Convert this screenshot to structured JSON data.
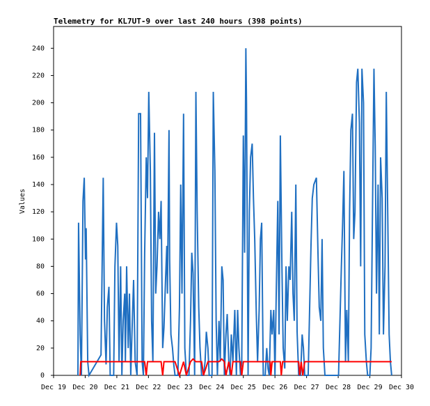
{
  "chart_data": {
    "type": "line",
    "title": "Telemetry for KL7UT-9 over last 240 hours (398 points)",
    "y_label": "Values",
    "xlim": [
      19,
      30
    ],
    "xticks": [
      {
        "value": 19,
        "label": "Dec 19"
      },
      {
        "value": 20,
        "label": "Dec 20"
      },
      {
        "value": 21,
        "label": "Dec 21"
      },
      {
        "value": 22,
        "label": "Dec 22"
      },
      {
        "value": 23,
        "label": "Dec 23"
      },
      {
        "value": 24,
        "label": "Dec 24"
      },
      {
        "value": 25,
        "label": "Dec 25"
      },
      {
        "value": 26,
        "label": "Dec 26"
      },
      {
        "value": 27,
        "label": "Dec 27"
      },
      {
        "value": 28,
        "label": "Dec 28"
      },
      {
        "value": 29,
        "label": "Dec 29"
      },
      {
        "value": 30,
        "label": "Dec 30"
      }
    ],
    "ylim": [
      0,
      256
    ],
    "yticks": [
      0,
      20,
      40,
      60,
      80,
      100,
      120,
      140,
      160,
      180,
      200,
      220,
      240
    ],
    "series": [
      {
        "color": "#1f6fc1",
        "x": [
          19.77,
          19.79,
          19.84,
          19.88,
          19.93,
          19.97,
          20.01,
          20.03,
          20.08,
          20.12,
          20.5,
          20.55,
          20.57,
          20.61,
          20.66,
          20.7,
          20.75,
          20.79,
          20.9,
          20.94,
          20.99,
          21.03,
          21.07,
          21.12,
          21.16,
          21.2,
          21.25,
          21.27,
          21.31,
          21.36,
          21.4,
          21.44,
          21.49,
          21.53,
          21.58,
          21.64,
          21.69,
          21.75,
          21.8,
          21.84,
          21.88,
          21.93,
          21.97,
          22.01,
          22.06,
          22.1,
          22.14,
          22.19,
          22.23,
          22.27,
          22.32,
          22.36,
          22.4,
          22.45,
          22.49,
          22.54,
          22.58,
          22.6,
          22.65,
          22.67,
          22.71,
          22.76,
          22.8,
          22.84,
          22.93,
          22.98,
          23.02,
          23.06,
          23.11,
          23.15,
          23.2,
          23.28,
          23.33,
          23.37,
          23.41,
          23.46,
          23.5,
          23.54,
          23.59,
          23.63,
          23.68,
          23.74,
          23.79,
          23.83,
          23.88,
          23.92,
          24.01,
          24.05,
          24.1,
          24.14,
          24.18,
          24.23,
          24.27,
          24.32,
          24.36,
          24.4,
          24.45,
          24.49,
          24.54,
          24.58,
          24.62,
          24.67,
          24.73,
          24.78,
          24.82,
          24.86,
          24.91,
          24.95,
          25.0,
          25.04,
          25.08,
          25.1,
          25.15,
          25.19,
          25.23,
          25.28,
          25.32,
          25.36,
          25.41,
          25.45,
          25.5,
          25.54,
          25.58,
          25.63,
          25.69,
          25.74,
          25.78,
          25.82,
          25.87,
          25.91,
          25.96,
          26.0,
          26.04,
          26.09,
          26.13,
          26.17,
          26.22,
          26.26,
          26.31,
          26.35,
          26.39,
          26.44,
          26.48,
          26.53,
          26.57,
          26.61,
          26.66,
          26.7,
          26.75,
          26.81,
          26.86,
          26.9,
          26.94,
          27.05,
          27.14,
          27.18,
          27.23,
          27.31,
          27.36,
          27.4,
          27.45,
          27.49,
          27.53,
          27.58,
          28.01,
          28.1,
          28.14,
          28.18,
          28.23,
          28.27,
          28.32,
          28.36,
          28.4,
          28.45,
          28.49,
          28.53,
          28.58,
          28.62,
          28.67,
          28.71,
          28.75,
          28.8,
          28.84,
          28.89,
          28.93,
          29.0,
          29.04,
          29.08,
          29.13,
          29.17,
          29.21,
          29.26,
          29.3,
          29.34,
          29.39,
          29.43,
          29.48,
          29.52,
          29.56,
          29.61,
          29.65,
          29.69
        ],
        "values": [
          0,
          112,
          30,
          0,
          128,
          145,
          85,
          108,
          10,
          0,
          15,
          108,
          145,
          40,
          8,
          50,
          65,
          0,
          0,
          80,
          112,
          95,
          10,
          80,
          0,
          40,
          60,
          10,
          80,
          20,
          60,
          0,
          40,
          70,
          10,
          0,
          192,
          192,
          10,
          0,
          90,
          160,
          130,
          208,
          150,
          40,
          10,
          178,
          60,
          80,
          120,
          100,
          128,
          20,
          35,
          70,
          95,
          60,
          180,
          85,
          30,
          20,
          8,
          0,
          0,
          50,
          140,
          60,
          192,
          20,
          0,
          0,
          40,
          90,
          75,
          0,
          208,
          120,
          50,
          20,
          0,
          0,
          10,
          32,
          20,
          0,
          0,
          208,
          150,
          40,
          0,
          40,
          10,
          80,
          70,
          0,
          30,
          45,
          10,
          0,
          30,
          10,
          48,
          0,
          48,
          20,
          0,
          10,
          176,
          90,
          240,
          200,
          0,
          120,
          160,
          170,
          130,
          100,
          45,
          10,
          48,
          100,
          112,
          0,
          0,
          20,
          5,
          0,
          48,
          30,
          48,
          0,
          60,
          128,
          30,
          176,
          80,
          20,
          5,
          80,
          40,
          80,
          70,
          120,
          60,
          40,
          140,
          32,
          0,
          0,
          30,
          20,
          0,
          0,
          96,
          130,
          140,
          145,
          90,
          50,
          40,
          100,
          20,
          0,
          0,
          80,
          112,
          150,
          10,
          48,
          10,
          120,
          180,
          192,
          100,
          120,
          215,
          225,
          185,
          80,
          225,
          200,
          30,
          10,
          0,
          0,
          20,
          112,
          225,
          168,
          60,
          140,
          30,
          160,
          130,
          30,
          80,
          208,
          130,
          30,
          10,
          0
        ]
      },
      {
        "color": "#ff0000",
        "x": [
          19.84,
          19.86,
          21.88,
          21.93,
          21.97,
          22.4,
          22.45,
          22.49,
          22.84,
          22.98,
          23.11,
          23.2,
          23.33,
          23.41,
          23.5,
          23.68,
          23.74,
          23.88,
          24.23,
          24.32,
          24.4,
          24.45,
          24.54,
          24.62,
          24.67,
          24.91,
          24.95,
          25.0,
          25.85,
          25.87,
          25.91,
          26.17,
          26.2,
          26.24,
          26.75,
          26.78,
          26.83,
          26.88,
          26.94,
          29.69
        ],
        "values": [
          0,
          10,
          10,
          0,
          10,
          10,
          0,
          10,
          10,
          0,
          10,
          0,
          10,
          12,
          10,
          10,
          0,
          10,
          10,
          12,
          10,
          0,
          10,
          0,
          10,
          10,
          0,
          10,
          10,
          0,
          10,
          10,
          0,
          10,
          10,
          0,
          10,
          0,
          10,
          10
        ]
      }
    ]
  }
}
